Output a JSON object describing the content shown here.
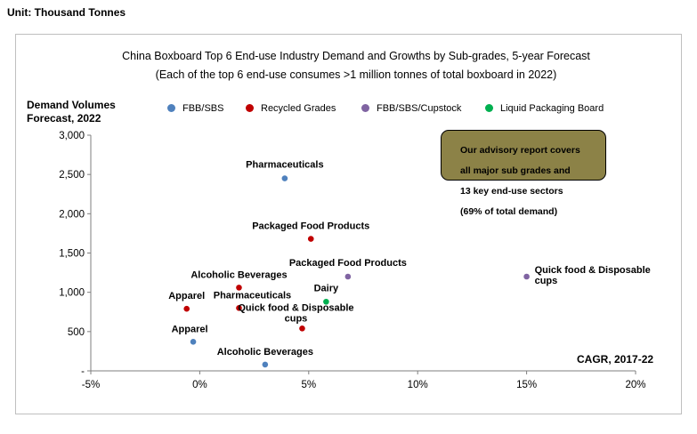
{
  "unit_label": "Unit: Thousand Tonnes",
  "colors": {
    "fbb_sbs": "#4f81bd",
    "recycled": "#c00000",
    "cupstock": "#8064a2",
    "liquid": "#00b050",
    "callout_bg": "#8c8247"
  },
  "callout": {
    "line1": "Our advisory report covers",
    "line2": "all major sub grades and",
    "line3": "13 key end-use sectors",
    "line4": "(69% of total demand)"
  },
  "chart_data": {
    "type": "scatter",
    "title": "China Boxboard Top 6 End-use Industry Demand and Growths by Sub-grades, 5-year Forecast",
    "subtitle": "(Each of the top 6 end-use consumes >1 million tonnes of total boxboard in 2022)",
    "ylabel_line1": "Demand Volumes",
    "ylabel_line2": "Forecast, 2022",
    "xlabel": "CAGR, 2017-22",
    "xlim": [
      -5,
      20
    ],
    "ylim": [
      0,
      3000
    ],
    "x_ticks": [
      {
        "value": -5,
        "label": "-5%"
      },
      {
        "value": 0,
        "label": "0%"
      },
      {
        "value": 5,
        "label": "5%"
      },
      {
        "value": 10,
        "label": "10%"
      },
      {
        "value": 15,
        "label": "15%"
      },
      {
        "value": 20,
        "label": "20%"
      }
    ],
    "y_ticks": [
      {
        "value": 0,
        "label": "-"
      },
      {
        "value": 500,
        "label": "500"
      },
      {
        "value": 1000,
        "label": "1,000"
      },
      {
        "value": 1500,
        "label": "1,500"
      },
      {
        "value": 2000,
        "label": "2,000"
      },
      {
        "value": 2500,
        "label": "2,500"
      },
      {
        "value": 3000,
        "label": "3,000"
      }
    ],
    "series": [
      {
        "name": "FBB/SBS",
        "color": "#4f81bd",
        "points": [
          {
            "label": "Pharmaceuticals",
            "x": 3.9,
            "y": 2450
          },
          {
            "label": "Apparel",
            "x": -0.3,
            "y": 370
          },
          {
            "label": "Alcoholic Beverages",
            "x": 3.0,
            "y": 80
          }
        ]
      },
      {
        "name": "Recycled Grades",
        "color": "#c00000",
        "points": [
          {
            "label": "Packaged Food Products",
            "x": 5.1,
            "y": 1680
          },
          {
            "label": "Alcoholic Beverages",
            "x": 1.8,
            "y": 1060
          },
          {
            "label": "Apparel",
            "x": -0.6,
            "y": 790
          },
          {
            "label": "Pharmaceuticals",
            "x": 1.8,
            "y": 800
          },
          {
            "label": "Quick food & Disposable cups",
            "x": 4.7,
            "y": 540
          }
        ]
      },
      {
        "name": "FBB/SBS/Cupstock",
        "color": "#8064a2",
        "points": [
          {
            "label": "Packaged Food Products",
            "x": 6.8,
            "y": 1200
          },
          {
            "label": "Quick food & Disposable cups",
            "x": 15.0,
            "y": 1200
          }
        ]
      },
      {
        "name": "Liquid Packaging Board",
        "color": "#00b050",
        "points": [
          {
            "label": "Dairy",
            "x": 5.8,
            "y": 880
          }
        ]
      }
    ]
  }
}
